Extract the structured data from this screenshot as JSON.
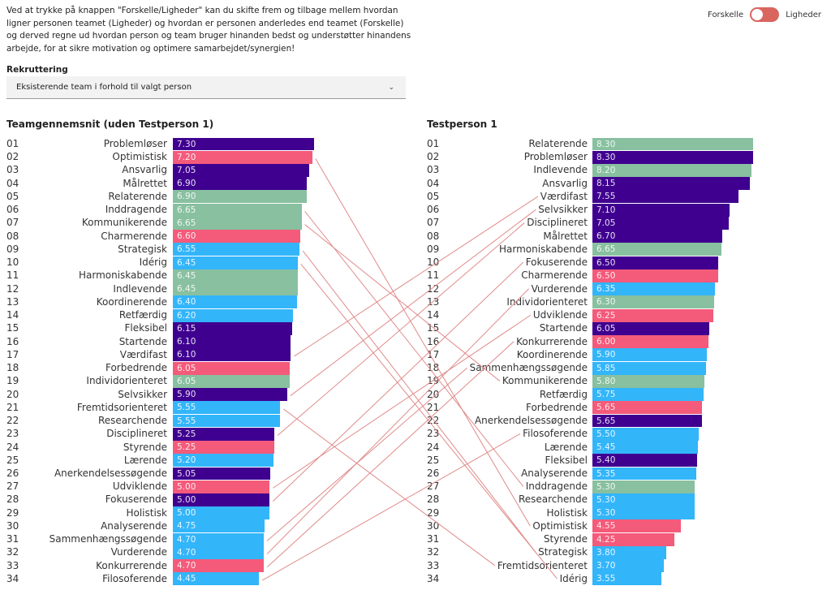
{
  "intro_text": "Ved at trykke på knappen \"Forskelle/Ligheder\" kan du skifte frem og tilbage mellem hvordan ligner personen teamet (Ligheder) og hvordan er personen anderledes end teamet (Forskelle) og derved regne ud hvordan person og team bruger hinanden bedst og understøtter hinandens arbejde, for at sikre motivation og optimere samarbejdet/synergien!",
  "toggle": {
    "left_label": "Forskelle",
    "right_label": "Ligheder",
    "state": "Forskelle",
    "color": "#d9655f"
  },
  "select": {
    "label": "Rekruttering",
    "value": "Eksisterende team i forhold til valgt person",
    "chevron": "chevron-down-icon"
  },
  "colors": {
    "purple": "#3f0090",
    "pink": "#f45a7a",
    "green": "#88c0a0",
    "blue": "#33b5fa",
    "line": "#e08a8a"
  },
  "chart_data": [
    {
      "type": "bar",
      "title": "Teamgennemsnit (uden Testperson 1)",
      "orientation": "horizontal",
      "xlim": [
        0,
        10
      ],
      "rows": [
        {
          "rank": "01",
          "label": "Problemløser",
          "value": 7.3,
          "color": "purple"
        },
        {
          "rank": "02",
          "label": "Optimistisk",
          "value": 7.2,
          "color": "pink"
        },
        {
          "rank": "03",
          "label": "Ansvarlig",
          "value": 7.05,
          "color": "purple"
        },
        {
          "rank": "04",
          "label": "Målrettet",
          "value": 6.9,
          "color": "purple"
        },
        {
          "rank": "05",
          "label": "Relaterende",
          "value": 6.9,
          "color": "green"
        },
        {
          "rank": "06",
          "label": "Inddragende",
          "value": 6.65,
          "color": "green"
        },
        {
          "rank": "07",
          "label": "Kommunikerende",
          "value": 6.65,
          "color": "green"
        },
        {
          "rank": "08",
          "label": "Charmerende",
          "value": 6.6,
          "color": "pink"
        },
        {
          "rank": "09",
          "label": "Strategisk",
          "value": 6.55,
          "color": "blue"
        },
        {
          "rank": "10",
          "label": "Idérig",
          "value": 6.45,
          "color": "blue"
        },
        {
          "rank": "11",
          "label": "Harmoniskabende",
          "value": 6.45,
          "color": "green"
        },
        {
          "rank": "12",
          "label": "Indlevende",
          "value": 6.45,
          "color": "green"
        },
        {
          "rank": "13",
          "label": "Koordinerende",
          "value": 6.4,
          "color": "blue"
        },
        {
          "rank": "14",
          "label": "Retfærdig",
          "value": 6.2,
          "color": "blue"
        },
        {
          "rank": "15",
          "label": "Fleksibel",
          "value": 6.15,
          "color": "purple"
        },
        {
          "rank": "16",
          "label": "Startende",
          "value": 6.1,
          "color": "purple"
        },
        {
          "rank": "17",
          "label": "Værdifast",
          "value": 6.1,
          "color": "purple"
        },
        {
          "rank": "18",
          "label": "Forbedrende",
          "value": 6.05,
          "color": "pink"
        },
        {
          "rank": "19",
          "label": "Individorienteret",
          "value": 6.05,
          "color": "green"
        },
        {
          "rank": "20",
          "label": "Selvsikker",
          "value": 5.9,
          "color": "purple"
        },
        {
          "rank": "21",
          "label": "Fremtidsorienteret",
          "value": 5.55,
          "color": "blue"
        },
        {
          "rank": "22",
          "label": "Researchende",
          "value": 5.55,
          "color": "blue"
        },
        {
          "rank": "23",
          "label": "Disciplineret",
          "value": 5.25,
          "color": "purple"
        },
        {
          "rank": "24",
          "label": "Styrende",
          "value": 5.25,
          "color": "pink"
        },
        {
          "rank": "25",
          "label": "Lærende",
          "value": 5.2,
          "color": "blue"
        },
        {
          "rank": "26",
          "label": "Anerkendelsessøgende",
          "value": 5.05,
          "color": "purple"
        },
        {
          "rank": "27",
          "label": "Udviklende",
          "value": 5.0,
          "color": "pink"
        },
        {
          "rank": "28",
          "label": "Fokuserende",
          "value": 5.0,
          "color": "purple"
        },
        {
          "rank": "29",
          "label": "Holistisk",
          "value": 5.0,
          "color": "blue"
        },
        {
          "rank": "30",
          "label": "Analyserende",
          "value": 4.75,
          "color": "blue"
        },
        {
          "rank": "31",
          "label": "Sammenhængssøgende",
          "value": 4.7,
          "color": "blue"
        },
        {
          "rank": "32",
          "label": "Vurderende",
          "value": 4.7,
          "color": "blue"
        },
        {
          "rank": "33",
          "label": "Konkurrerende",
          "value": 4.7,
          "color": "pink"
        },
        {
          "rank": "34",
          "label": "Filosoferende",
          "value": 4.45,
          "color": "blue"
        }
      ]
    },
    {
      "type": "bar",
      "title": "Testperson 1",
      "orientation": "horizontal",
      "xlim": [
        0,
        10
      ],
      "rows": [
        {
          "rank": "01",
          "label": "Relaterende",
          "value": 8.3,
          "color": "green"
        },
        {
          "rank": "02",
          "label": "Problemløser",
          "value": 8.3,
          "color": "purple"
        },
        {
          "rank": "03",
          "label": "Indlevende",
          "value": 8.2,
          "color": "green"
        },
        {
          "rank": "04",
          "label": "Ansvarlig",
          "value": 8.15,
          "color": "purple"
        },
        {
          "rank": "05",
          "label": "Værdifast",
          "value": 7.55,
          "color": "purple"
        },
        {
          "rank": "06",
          "label": "Selvsikker",
          "value": 7.1,
          "color": "purple"
        },
        {
          "rank": "07",
          "label": "Disciplineret",
          "value": 7.05,
          "color": "purple"
        },
        {
          "rank": "08",
          "label": "Målrettet",
          "value": 6.7,
          "color": "purple"
        },
        {
          "rank": "09",
          "label": "Harmoniskabende",
          "value": 6.65,
          "color": "green"
        },
        {
          "rank": "10",
          "label": "Fokuserende",
          "value": 6.5,
          "color": "purple"
        },
        {
          "rank": "11",
          "label": "Charmerende",
          "value": 6.5,
          "color": "pink"
        },
        {
          "rank": "12",
          "label": "Vurderende",
          "value": 6.35,
          "color": "blue"
        },
        {
          "rank": "13",
          "label": "Individorienteret",
          "value": 6.3,
          "color": "green"
        },
        {
          "rank": "14",
          "label": "Udviklende",
          "value": 6.25,
          "color": "pink"
        },
        {
          "rank": "15",
          "label": "Startende",
          "value": 6.05,
          "color": "purple"
        },
        {
          "rank": "16",
          "label": "Konkurrerende",
          "value": 6.0,
          "color": "pink"
        },
        {
          "rank": "17",
          "label": "Koordinerende",
          "value": 5.9,
          "color": "blue"
        },
        {
          "rank": "18",
          "label": "Sammenhængssøgende",
          "value": 5.85,
          "color": "blue"
        },
        {
          "rank": "19",
          "label": "Kommunikerende",
          "value": 5.8,
          "color": "green"
        },
        {
          "rank": "20",
          "label": "Retfærdig",
          "value": 5.75,
          "color": "blue"
        },
        {
          "rank": "21",
          "label": "Forbedrende",
          "value": 5.65,
          "color": "pink"
        },
        {
          "rank": "22",
          "label": "Anerkendelsessøgende",
          "value": 5.65,
          "color": "purple"
        },
        {
          "rank": "23",
          "label": "Filosoferende",
          "value": 5.5,
          "color": "blue"
        },
        {
          "rank": "24",
          "label": "Lærende",
          "value": 5.45,
          "color": "blue"
        },
        {
          "rank": "25",
          "label": "Fleksibel",
          "value": 5.4,
          "color": "purple"
        },
        {
          "rank": "26",
          "label": "Analyserende",
          "value": 5.35,
          "color": "blue"
        },
        {
          "rank": "27",
          "label": "Inddragende",
          "value": 5.3,
          "color": "green"
        },
        {
          "rank": "28",
          "label": "Researchende",
          "value": 5.3,
          "color": "blue"
        },
        {
          "rank": "29",
          "label": "Holistisk",
          "value": 5.3,
          "color": "blue"
        },
        {
          "rank": "30",
          "label": "Optimistisk",
          "value": 4.55,
          "color": "pink"
        },
        {
          "rank": "31",
          "label": "Styrende",
          "value": 4.25,
          "color": "pink"
        },
        {
          "rank": "32",
          "label": "Strategisk",
          "value": 3.8,
          "color": "blue"
        },
        {
          "rank": "33",
          "label": "Fremtidsorienteret",
          "value": 3.7,
          "color": "blue"
        },
        {
          "rank": "34",
          "label": "Idérig",
          "value": 3.55,
          "color": "blue"
        }
      ]
    }
  ],
  "connector_rule": {
    "min_rank_difference": 11
  }
}
